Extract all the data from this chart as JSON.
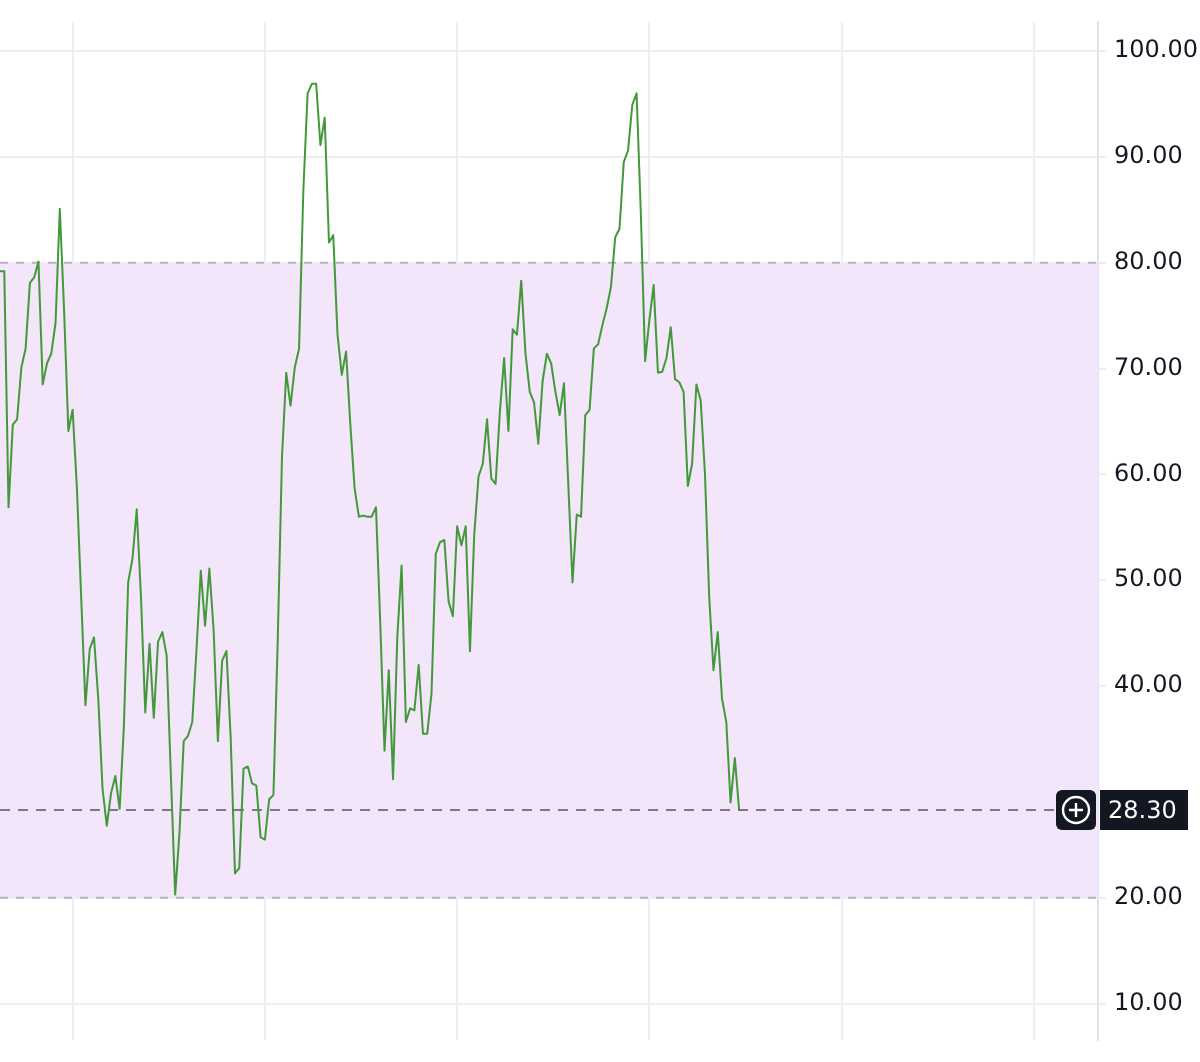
{
  "chart_data": {
    "type": "line",
    "tick_labels": "y",
    "grid": true,
    "legend": false,
    "marker": "none",
    "line_style": "solid",
    "categories": [
      null,
      null,
      null,
      null,
      null,
      null,
      null,
      null,
      null,
      null,
      null,
      null,
      null,
      null,
      null,
      null,
      null,
      null,
      null,
      null,
      null,
      null,
      null,
      null,
      null,
      null,
      null,
      null,
      null,
      null,
      null,
      null,
      null,
      null,
      null,
      null,
      null,
      null,
      null,
      null,
      null,
      null,
      null,
      null,
      null,
      null,
      null,
      null,
      null,
      null,
      null,
      null,
      null,
      null,
      null,
      null,
      null,
      null,
      null,
      null,
      null,
      null,
      null,
      null,
      null,
      null,
      null,
      null,
      null,
      null,
      null,
      null,
      null,
      null,
      null,
      null,
      null,
      null,
      null,
      null,
      null,
      null,
      null,
      null,
      null,
      null,
      null,
      null,
      null,
      null,
      null,
      null,
      null,
      null,
      null,
      null,
      null,
      null,
      null,
      null,
      null,
      null,
      null,
      null,
      null,
      null,
      null,
      null,
      null,
      null,
      null,
      null,
      null,
      null,
      null,
      null,
      null,
      null,
      null,
      null,
      null,
      null,
      null,
      null,
      null,
      null,
      null,
      null,
      null,
      null,
      null,
      null,
      null,
      null,
      null,
      null,
      null,
      null,
      null,
      null,
      null,
      null,
      null,
      null,
      null,
      null,
      null,
      null,
      null,
      null,
      null,
      null,
      null,
      null,
      null,
      null,
      null,
      null,
      null,
      null,
      null,
      null,
      null,
      null,
      null,
      null,
      null,
      null,
      null,
      null,
      null,
      null,
      null,
      null,
      null,
      null,
      null,
      null,
      null,
      null,
      null,
      null,
      null,
      null,
      null,
      null,
      null,
      null,
      null,
      null,
      null,
      null,
      null,
      null,
      null,
      null,
      null,
      null,
      null,
      null,
      null,
      null,
      null,
      null,
      null,
      null,
      null,
      null,
      null,
      null,
      null,
      null,
      null,
      null,
      null,
      null,
      null,
      null,
      null,
      null,
      null,
      null,
      null,
      null,
      null,
      null,
      null,
      null,
      null,
      null,
      null,
      null,
      null,
      null,
      null,
      null,
      null,
      null,
      null,
      null,
      null,
      null,
      null,
      null,
      null,
      null,
      null,
      null,
      null,
      null,
      null,
      null,
      null,
      null,
      null,
      null,
      null,
      null
    ],
    "series": [
      {
        "color": "#43993a",
        "values": [
          79.2,
          79.2,
          56.9,
          64.7,
          65.2,
          70.1,
          71.9,
          78.1,
          78.6,
          80.1,
          68.5,
          70.5,
          71.4,
          74.3,
          85.1,
          75.5,
          64.1,
          66.1,
          58.7,
          48.4,
          38.2,
          43.5,
          44.6,
          38.8,
          30.3,
          26.8,
          29.9,
          31.5,
          28.4,
          36.2,
          49.8,
          52,
          56.7,
          48.4,
          37.5,
          44,
          37,
          44.2,
          45.1,
          42.9,
          31.5,
          20.3,
          26.1,
          34.8,
          35.3,
          36.6,
          43.5,
          50.9,
          45.7,
          51.1,
          45.3,
          34.8,
          42.4,
          43.3,
          35.1,
          22.3,
          22.8,
          32.2,
          32.4,
          30.8,
          30.6,
          25.7,
          25.5,
          29.3,
          29.7,
          44.2,
          61.6,
          69.6,
          66.5,
          70.1,
          71.9,
          86.8,
          96,
          96.9,
          96.9,
          91.1,
          93.7,
          81.9,
          82.6,
          73.2,
          69.4,
          71.6,
          64.7,
          58.7,
          56,
          56.1,
          56,
          56,
          56.9,
          46,
          33.9,
          41.5,
          31.2,
          44.7,
          51.4,
          36.6,
          37.9,
          37.7,
          42,
          35.5,
          35.5,
          39.3,
          52.5,
          53.6,
          53.8,
          48,
          46.6,
          55.1,
          53.3,
          55.1,
          43.3,
          54.3,
          59.8,
          61,
          65.2,
          59.6,
          59.1,
          65.9,
          71,
          64.1,
          73.7,
          73.2,
          78.3,
          71.4,
          67.8,
          66.8,
          62.9,
          68.8,
          71.4,
          70.5,
          67.8,
          65.6,
          68.6,
          59.2,
          49.8,
          56.2,
          56,
          65.6,
          66.1,
          71.9,
          72.3,
          74.1,
          75.7,
          77.7,
          82.4,
          83.2,
          89.5,
          90.6,
          94.9,
          96,
          84.6,
          70.7,
          74.6,
          77.9,
          69.6,
          69.7,
          71,
          73.9,
          69,
          68.7,
          67.8,
          58.9,
          61,
          68.5,
          67,
          60.1,
          48.4,
          41.5,
          45.1,
          38.8,
          36.6,
          29,
          33.2,
          28.3,
          null,
          null,
          null,
          null,
          null,
          null,
          null,
          null,
          null,
          null,
          null,
          null,
          null,
          null,
          null,
          null,
          null,
          null,
          null,
          null,
          null,
          null,
          null,
          null,
          null,
          null,
          null,
          null,
          null,
          null,
          null,
          null,
          null,
          null,
          null,
          null,
          null,
          null,
          null,
          null,
          null,
          null,
          null,
          null,
          null,
          null,
          null,
          null,
          null,
          null,
          null,
          null,
          null,
          null,
          null,
          null,
          null,
          null,
          null,
          null,
          null,
          null,
          null,
          null,
          null,
          null,
          null,
          null,
          null,
          null,
          null,
          null,
          null,
          null,
          null,
          null,
          null,
          null,
          null,
          null,
          null,
          null,
          null,
          null
        ]
      }
    ],
    "ylim": [
      6.6,
      102.7
    ],
    "yticks": [
      {
        "value": 10,
        "label": "10.00"
      },
      {
        "value": 20,
        "label": "20.00"
      },
      {
        "value": 30,
        "label": null
      },
      {
        "value": 40,
        "label": "40.00"
      },
      {
        "value": 50,
        "label": "50.00"
      },
      {
        "value": 60,
        "label": "60.00"
      },
      {
        "value": 70,
        "label": "70.00"
      },
      {
        "value": 80,
        "label": "80.00"
      },
      {
        "value": 90,
        "label": "90.00"
      },
      {
        "value": 100,
        "label": "100.00"
      }
    ],
    "bands": [
      {
        "axis": "y",
        "from": 20,
        "to": 80,
        "color": "#f3e5fa"
      }
    ],
    "ref_lines": [
      {
        "axis": "y",
        "value": 28.3,
        "label": "28.30",
        "color": "#787b86",
        "line_style": "dashed"
      }
    ]
  }
}
